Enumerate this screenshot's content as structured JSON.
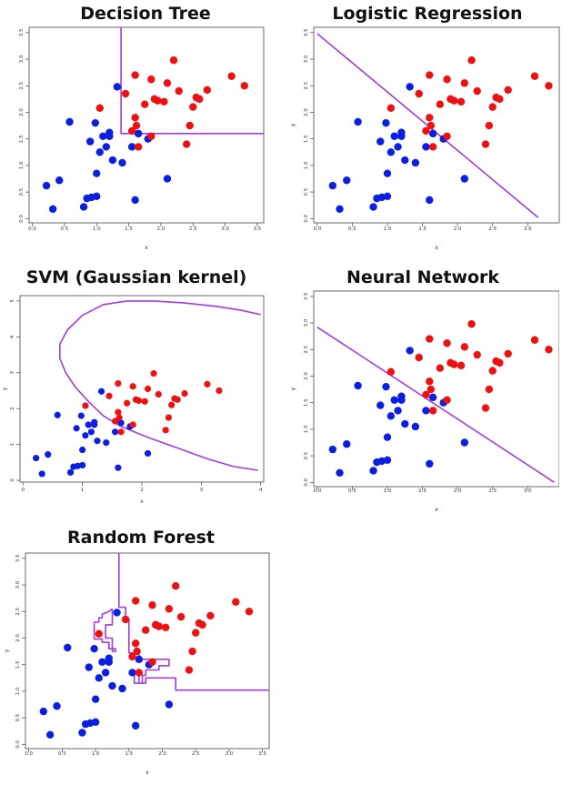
{
  "colors": {
    "class_blue": "#0b1fe0",
    "class_red": "#ee1111",
    "boundary": "#a33be0",
    "axis": "#444444"
  },
  "points": {
    "blue": [
      [
        0.22,
        0.62
      ],
      [
        0.32,
        0.18
      ],
      [
        0.42,
        0.72
      ],
      [
        0.58,
        1.82
      ],
      [
        0.8,
        0.22
      ],
      [
        0.85,
        0.38
      ],
      [
        0.9,
        1.45
      ],
      [
        0.92,
        0.4
      ],
      [
        0.98,
        1.8
      ],
      [
        1.0,
        0.85
      ],
      [
        1.0,
        0.42
      ],
      [
        1.05,
        1.25
      ],
      [
        1.1,
        1.55
      ],
      [
        1.15,
        1.35
      ],
      [
        1.2,
        1.55
      ],
      [
        1.2,
        1.62
      ],
      [
        1.25,
        1.1
      ],
      [
        1.32,
        2.48
      ],
      [
        1.4,
        1.05
      ],
      [
        1.55,
        1.35
      ],
      [
        1.6,
        0.35
      ],
      [
        1.65,
        1.6
      ],
      [
        1.8,
        1.5
      ],
      [
        2.1,
        0.75
      ]
    ],
    "red": [
      [
        1.05,
        2.08
      ],
      [
        1.45,
        2.35
      ],
      [
        1.55,
        1.65
      ],
      [
        1.6,
        1.9
      ],
      [
        1.6,
        2.7
      ],
      [
        1.62,
        1.75
      ],
      [
        1.65,
        1.35
      ],
      [
        1.75,
        2.15
      ],
      [
        1.85,
        2.62
      ],
      [
        1.85,
        1.55
      ],
      [
        1.9,
        2.25
      ],
      [
        1.95,
        2.22
      ],
      [
        2.05,
        2.2
      ],
      [
        2.1,
        2.55
      ],
      [
        2.2,
        2.98
      ],
      [
        2.28,
        2.4
      ],
      [
        2.4,
        1.4
      ],
      [
        2.45,
        1.75
      ],
      [
        2.5,
        2.1
      ],
      [
        2.55,
        2.28
      ],
      [
        2.6,
        2.25
      ],
      [
        2.72,
        2.42
      ],
      [
        3.1,
        2.68
      ],
      [
        3.3,
        2.5
      ]
    ]
  },
  "chart_data": [
    {
      "type": "scatter",
      "title": "Decision Tree",
      "xlabel": "x",
      "ylabel": "",
      "xlim": [
        -0.05,
        3.6
      ],
      "ylim": [
        -0.08,
        3.6
      ],
      "xticks": [
        "0.0",
        "0.5",
        "1.0",
        "1.5",
        "2.0",
        "2.5",
        "3.0",
        "3.5"
      ],
      "yticks": [
        "0.0",
        "0.5",
        "1.0",
        "1.5",
        "2.0",
        "2.5",
        "3.0",
        "3.5"
      ],
      "boundary": [
        [
          1.38,
          3.6
        ],
        [
          1.38,
          1.6
        ],
        [
          3.6,
          1.6
        ]
      ]
    },
    {
      "type": "scatter",
      "title": "Logistic Regression",
      "xlabel": "x",
      "ylabel": "y",
      "xlim": [
        -0.05,
        3.45
      ],
      "ylim": [
        -0.08,
        3.6
      ],
      "xticks": [
        "0.0",
        "0.5",
        "1.0",
        "1.5",
        "2.0",
        "2.5",
        "3.0",
        "3.5"
      ],
      "yticks": [
        "0.0",
        "0.5",
        "1.0",
        "1.5",
        "2.0",
        "2.5",
        "3.0",
        "3.5"
      ],
      "boundary": [
        [
          0.0,
          3.48
        ],
        [
          3.15,
          0.02
        ]
      ]
    },
    {
      "type": "scatter",
      "title": "SVM (Gaussian kernel)",
      "xlabel": "x",
      "ylabel": "y",
      "xlim": [
        -0.05,
        4.05
      ],
      "ylim": [
        -0.05,
        5.15
      ],
      "xticks": [
        "0",
        "1",
        "2",
        "3",
        "4"
      ],
      "yticks": [
        "0",
        "1",
        "2",
        "3",
        "4",
        "5"
      ],
      "boundary": [
        [
          1.75,
          5.0
        ],
        [
          1.35,
          4.9
        ],
        [
          1.0,
          4.6
        ],
        [
          0.75,
          4.2
        ],
        [
          0.62,
          3.8
        ],
        [
          0.62,
          3.4
        ],
        [
          0.72,
          3.0
        ],
        [
          0.88,
          2.6
        ],
        [
          1.1,
          2.2
        ],
        [
          1.35,
          1.8
        ],
        [
          1.65,
          1.5
        ],
        [
          2.1,
          1.2
        ],
        [
          2.6,
          0.9
        ],
        [
          3.1,
          0.6
        ],
        [
          3.55,
          0.38
        ],
        [
          3.95,
          0.28
        ]
      ],
      "boundary2": [
        [
          1.75,
          5.0
        ],
        [
          2.2,
          5.0
        ],
        [
          2.7,
          4.95
        ],
        [
          3.25,
          4.85
        ],
        [
          3.65,
          4.75
        ],
        [
          4.0,
          4.62
        ]
      ]
    },
    {
      "type": "scatter",
      "title": "Neural Network",
      "xlabel": "x",
      "ylabel": "y",
      "xlim": [
        -0.05,
        3.45
      ],
      "ylim": [
        -0.08,
        3.6
      ],
      "xticks": [
        "0.0",
        "0.5",
        "1.0",
        "1.5",
        "2.0",
        "2.5",
        "3.0",
        "3.5"
      ],
      "yticks": [
        "0.0",
        "0.5",
        "1.0",
        "1.5",
        "2.0",
        "2.5",
        "3.0",
        "3.5"
      ],
      "boundary": [
        [
          0.0,
          2.92
        ],
        [
          3.38,
          0.0
        ]
      ]
    },
    {
      "type": "scatter",
      "title": "Random Forest",
      "xlabel": "x",
      "ylabel": "y",
      "xlim": [
        -0.05,
        3.6
      ],
      "ylim": [
        -0.08,
        3.6
      ],
      "xticks": [
        "0.0",
        "0.5",
        "1.0",
        "1.5",
        "2.0",
        "2.5",
        "3.0",
        "3.5"
      ],
      "yticks": [
        "0.0",
        "0.5",
        "1.0",
        "1.5",
        "2.0",
        "2.5",
        "3.0",
        "3.5"
      ],
      "boundary": [
        [
          1.35,
          3.6
        ],
        [
          1.35,
          2.58
        ],
        [
          1.45,
          2.58
        ],
        [
          1.45,
          2.35
        ],
        [
          1.5,
          2.35
        ],
        [
          1.5,
          1.72
        ],
        [
          1.65,
          1.72
        ],
        [
          1.65,
          1.6
        ],
        [
          2.1,
          1.6
        ],
        [
          2.1,
          1.48
        ],
        [
          1.95,
          1.48
        ],
        [
          1.95,
          1.4
        ],
        [
          1.75,
          1.4
        ],
        [
          1.75,
          1.3
        ],
        [
          1.7,
          1.3
        ],
        [
          1.7,
          1.15
        ],
        [
          1.65,
          1.15
        ],
        [
          1.65,
          1.35
        ],
        [
          1.58,
          1.35
        ],
        [
          1.58,
          1.15
        ],
        [
          1.75,
          1.15
        ],
        [
          1.75,
          1.25
        ],
        [
          2.2,
          1.25
        ],
        [
          2.2,
          1.02
        ],
        [
          3.6,
          1.02
        ]
      ],
      "boundary2": [
        [
          1.25,
          2.55
        ],
        [
          1.2,
          2.5
        ],
        [
          1.1,
          2.45
        ],
        [
          1.1,
          2.38
        ],
        [
          1.05,
          2.38
        ],
        [
          1.05,
          2.3
        ],
        [
          0.98,
          2.3
        ],
        [
          0.98,
          1.98
        ],
        [
          1.1,
          1.98
        ],
        [
          1.1,
          1.92
        ],
        [
          1.2,
          1.92
        ],
        [
          1.2,
          1.8
        ],
        [
          1.3,
          1.8
        ],
        [
          1.3,
          1.75
        ],
        [
          1.25,
          1.75
        ],
        [
          1.25,
          2.0
        ],
        [
          1.15,
          2.0
        ],
        [
          1.15,
          2.25
        ],
        [
          1.25,
          2.25
        ],
        [
          1.25,
          2.55
        ]
      ]
    }
  ]
}
